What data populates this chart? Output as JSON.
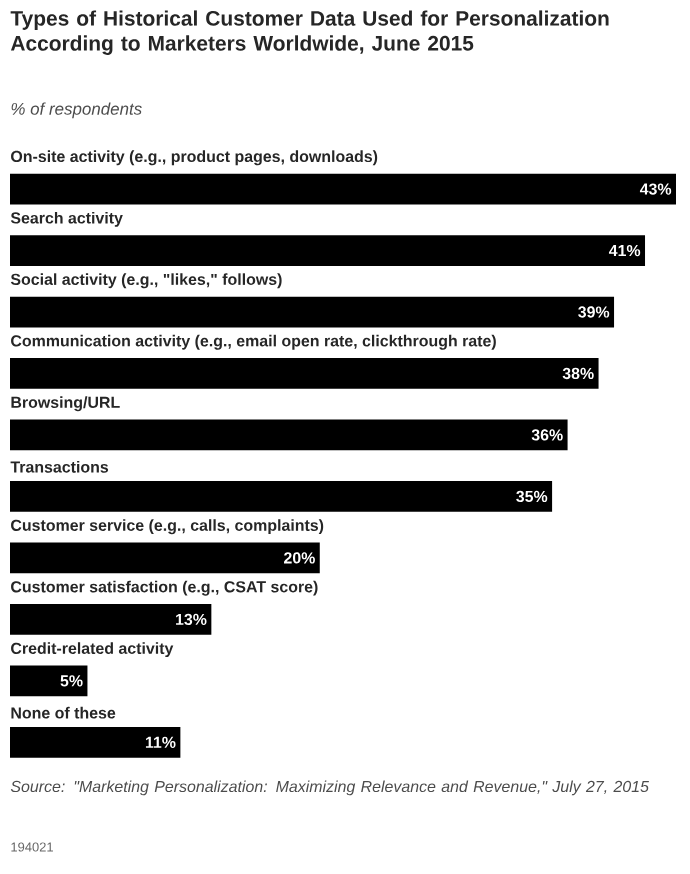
{
  "chart_data": {
    "type": "bar",
    "orientation": "horizontal",
    "title": "Types of Historical Customer Data Used for Personalization According to Marketers Worldwide, June 2015",
    "subtitle": "% of respondents",
    "categories": [
      "On-site activity (e.g., product pages, downloads)",
      "Search activity",
      "Social activity (e.g., \"likes,\" follows)",
      "Communication activity (e.g., email open rate, clickthrough rate)",
      "Browsing/URL",
      "Transactions",
      "Customer service (e.g., calls, complaints)",
      "Customer satisfaction (e.g., CSAT score)",
      "Credit-related activity",
      "None of these"
    ],
    "values": [
      43,
      41,
      39,
      38,
      36,
      35,
      20,
      13,
      5,
      11
    ],
    "value_labels": [
      "43%",
      "41%",
      "39%",
      "38%",
      "36%",
      "35%",
      "20%",
      "13%",
      "5%",
      "11%"
    ],
    "color": "#000000",
    "annotations": [
      "Source: \"Marketing Personalization: Maximizing Relevance and Revenue,\" July 27, 2015",
      "194021"
    ]
  }
}
